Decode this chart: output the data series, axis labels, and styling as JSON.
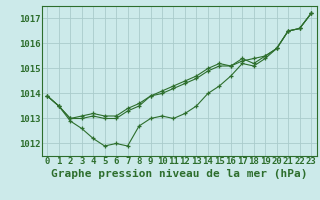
{
  "title": "Graphe pression niveau de la mer (hPa)",
  "ylabel_ticks": [
    1012,
    1013,
    1014,
    1015,
    1016,
    1017
  ],
  "ylim": [
    1011.5,
    1017.5
  ],
  "xlim": [
    -0.5,
    23.5
  ],
  "background_color": "#cceaea",
  "grid_color": "#aacccc",
  "line_color": "#2d6e2d",
  "marker": "+",
  "series": [
    [
      1013.9,
      1013.5,
      1012.9,
      1012.6,
      1012.2,
      1011.9,
      1012.0,
      1011.9,
      1012.7,
      1013.0,
      1013.1,
      1013.0,
      1013.2,
      1013.5,
      1014.0,
      1014.3,
      1014.7,
      1015.2,
      1015.1,
      1015.4,
      1015.8,
      1016.5,
      1016.6,
      1017.2
    ],
    [
      1013.9,
      1013.5,
      1013.0,
      1013.0,
      1013.1,
      1013.0,
      1013.0,
      1013.3,
      1013.5,
      1013.9,
      1014.0,
      1014.2,
      1014.4,
      1014.6,
      1014.9,
      1015.1,
      1015.1,
      1015.3,
      1015.4,
      1015.5,
      1015.8,
      1016.5,
      1016.6,
      1017.2
    ],
    [
      1013.9,
      1013.5,
      1013.0,
      1013.1,
      1013.2,
      1013.1,
      1013.1,
      1013.4,
      1013.6,
      1013.9,
      1014.1,
      1014.3,
      1014.5,
      1014.7,
      1015.0,
      1015.2,
      1015.1,
      1015.4,
      1015.2,
      1015.5,
      1015.8,
      1016.5,
      1016.6,
      1017.2
    ]
  ],
  "title_color": "#2d6e2d",
  "title_fontsize": 8,
  "tick_fontsize": 6.5,
  "marker_size": 3,
  "linewidth": 0.8
}
